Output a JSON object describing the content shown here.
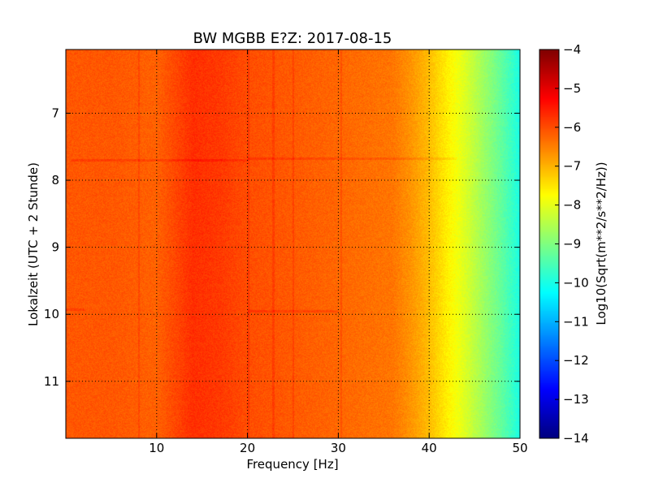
{
  "chart_data": {
    "type": "heatmap",
    "title": "BW MGBB E?Z: 2017-08-15",
    "xlabel": "Frequency [Hz]",
    "ylabel": "Lokalzeit (UTC + 2 Stunde)",
    "xlim": [
      0,
      50
    ],
    "ylim": [
      11.85,
      6.05
    ],
    "y_inverted": true,
    "x_ticks": [
      10,
      20,
      30,
      40,
      50
    ],
    "y_ticks": [
      7,
      8,
      9,
      10,
      11
    ],
    "grid": true,
    "colormap": "jet",
    "colorbar": {
      "label": "Log10(Sqrt(m**2/s**2/Hz))",
      "range": [
        -14,
        -4
      ],
      "ticks": [
        -4,
        -5,
        -6,
        -7,
        -8,
        -9,
        -10,
        -11,
        -12,
        -13,
        -14
      ]
    },
    "spectral_profile": {
      "frequency_hz": [
        0,
        5,
        10,
        14,
        17,
        20,
        24,
        28,
        32,
        36,
        38,
        40,
        42,
        44,
        46,
        48,
        50
      ],
      "log10_amplitude": [
        -6.1,
        -6.1,
        -6.2,
        -5.7,
        -5.8,
        -6.0,
        -6.1,
        -6.2,
        -6.3,
        -6.4,
        -6.7,
        -7.1,
        -7.6,
        -8.1,
        -8.7,
        -9.3,
        -10.0
      ]
    },
    "vertical_lines_hz": [
      8.0,
      20.1,
      22.8,
      25.0,
      30.3
    ],
    "horizontal_bands": [
      {
        "time": 7.67,
        "from_hz": 20,
        "to_hz": 43
      },
      {
        "time": 7.7,
        "from_hz": 0.5,
        "to_hz": 20
      },
      {
        "time": 9.93,
        "from_hz": 0,
        "to_hz": 2
      },
      {
        "time": 9.95,
        "from_hz": 20,
        "to_hz": 30
      }
    ]
  }
}
